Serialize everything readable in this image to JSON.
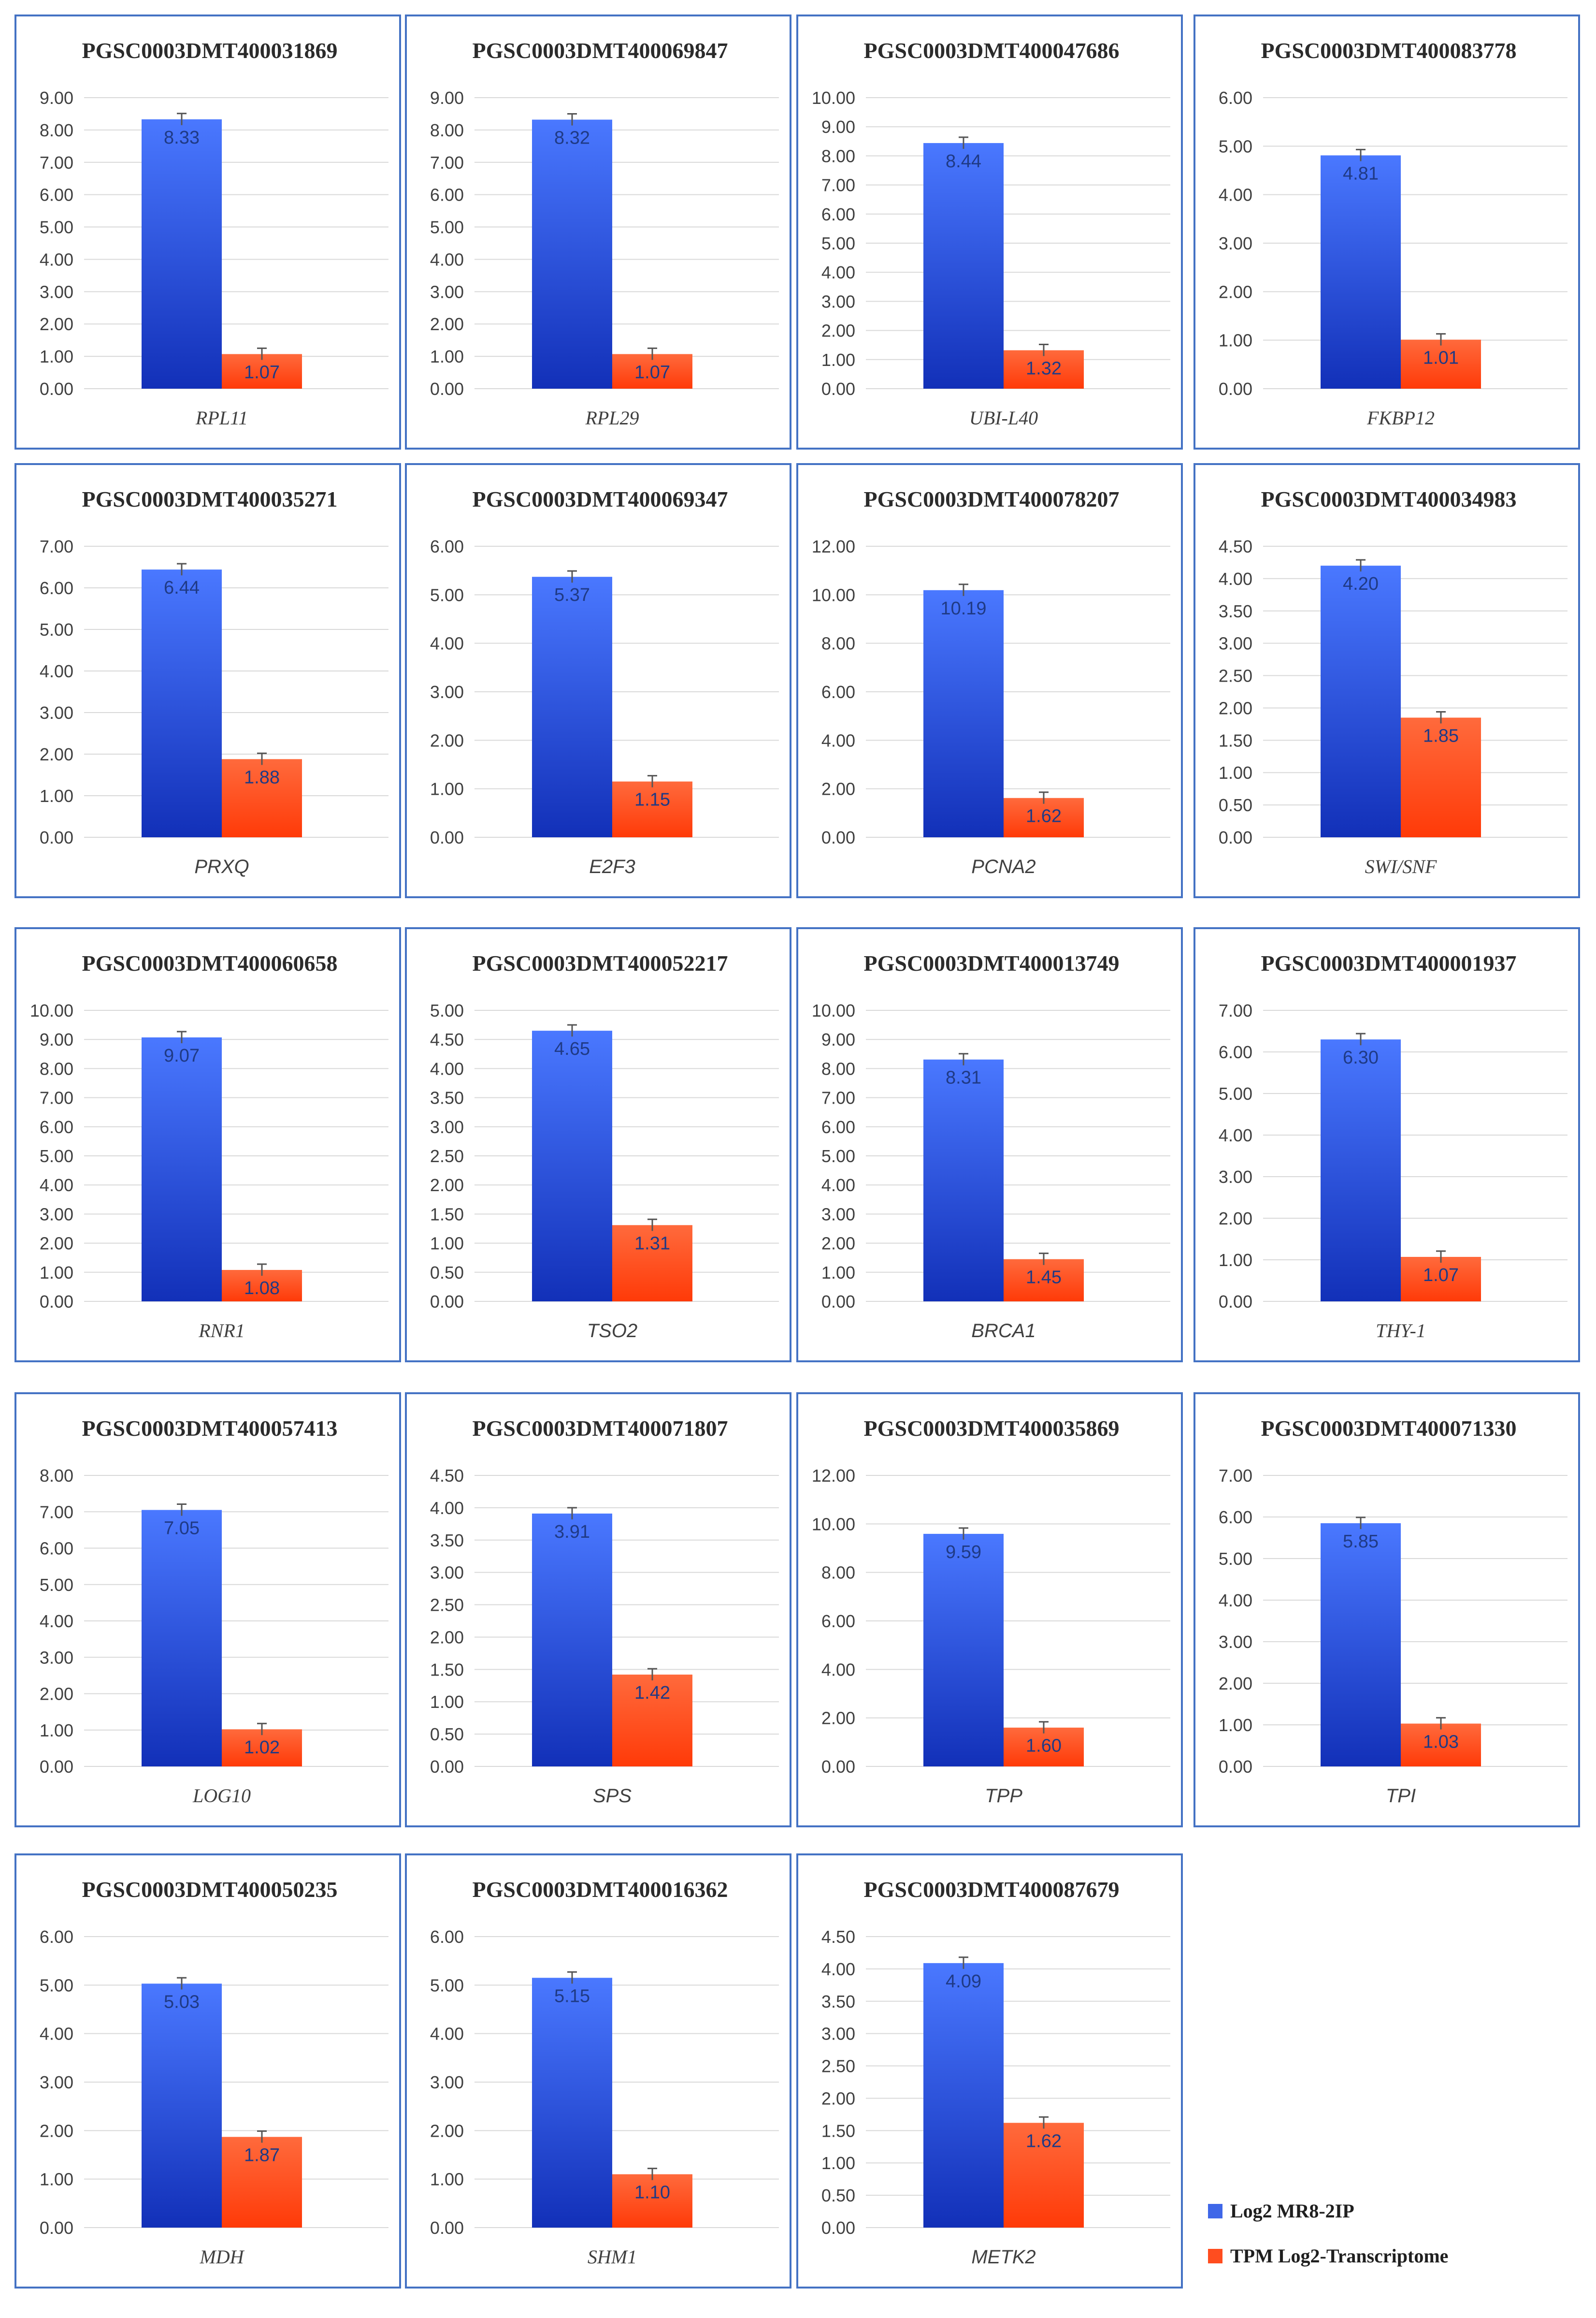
{
  "colors": {
    "ip_bar": "#3f67e8",
    "transcriptome_bar": "#ff4d1f",
    "border": "#4472c4"
  },
  "legend": {
    "series_a": "Log2 MR8-2IP",
    "series_b": "TPM Log2-Transcriptome"
  },
  "chart_data": [
    {
      "type": "bar",
      "title": "PGSC0003DMT400031869",
      "xlabel": "RPL11",
      "ylim": [
        0,
        9
      ],
      "ticks": [
        "0.00",
        "1.00",
        "2.00",
        "3.00",
        "4.00",
        "5.00",
        "6.00",
        "7.00",
        "8.00",
        "9.00"
      ],
      "series": [
        {
          "name": "Log2 MR8-2IP",
          "value": 8.33,
          "label": "8.33"
        },
        {
          "name": "TPM Log2-Transcriptome",
          "value": 1.07,
          "label": "1.07"
        }
      ]
    },
    {
      "type": "bar",
      "title": "PGSC0003DMT400069847",
      "xlabel": "RPL29",
      "ylim": [
        0,
        9
      ],
      "ticks": [
        "0.00",
        "1.00",
        "2.00",
        "3.00",
        "4.00",
        "5.00",
        "6.00",
        "7.00",
        "8.00",
        "9.00"
      ],
      "series": [
        {
          "name": "Log2 MR8-2IP",
          "value": 8.32,
          "label": "8.32"
        },
        {
          "name": "TPM Log2-Transcriptome",
          "value": 1.07,
          "label": "1.07"
        }
      ]
    },
    {
      "type": "bar",
      "title": "PGSC0003DMT400047686",
      "xlabel": "UBI-L40",
      "ylim": [
        0,
        10
      ],
      "ticks": [
        "0.00",
        "1.00",
        "2.00",
        "3.00",
        "4.00",
        "5.00",
        "6.00",
        "7.00",
        "8.00",
        "9.00",
        "10.00"
      ],
      "series": [
        {
          "name": "Log2 MR8-2IP",
          "value": 8.44,
          "label": "8.44"
        },
        {
          "name": "TPM Log2-Transcriptome",
          "value": 1.32,
          "label": "1.32"
        }
      ]
    },
    {
      "type": "bar",
      "title": "PGSC0003DMT400083778",
      "xlabel": "FKBP12",
      "ylim": [
        0,
        6
      ],
      "ticks": [
        "0.00",
        "1.00",
        "2.00",
        "3.00",
        "4.00",
        "5.00",
        "6.00"
      ],
      "series": [
        {
          "name": "Log2 MR8-2IP",
          "value": 4.81,
          "label": "4.81"
        },
        {
          "name": "TPM Log2-Transcriptome",
          "value": 1.01,
          "label": "1.01"
        }
      ]
    },
    {
      "type": "bar",
      "title": "PGSC0003DMT400035271",
      "xlabel": "PRXQ",
      "ylim": [
        0,
        7
      ],
      "ticks": [
        "0.00",
        "1.00",
        "2.00",
        "3.00",
        "4.00",
        "5.00",
        "6.00",
        "7.00"
      ],
      "series": [
        {
          "name": "Log2 MR8-2IP",
          "value": 6.44,
          "label": "6.44"
        },
        {
          "name": "TPM Log2-Transcriptome",
          "value": 1.88,
          "label": "1.88"
        }
      ]
    },
    {
      "type": "bar",
      "title": "PGSC0003DMT400069347",
      "xlabel": "E2F3",
      "ylim": [
        0,
        6
      ],
      "ticks": [
        "0.00",
        "1.00",
        "2.00",
        "3.00",
        "4.00",
        "5.00",
        "6.00"
      ],
      "series": [
        {
          "name": "Log2 MR8-2IP",
          "value": 5.37,
          "label": "5.37"
        },
        {
          "name": "TPM Log2-Transcriptome",
          "value": 1.15,
          "label": "1.15"
        }
      ]
    },
    {
      "type": "bar",
      "title": "PGSC0003DMT400078207",
      "xlabel": "PCNA2",
      "ylim": [
        0,
        12
      ],
      "ticks": [
        "0.00",
        "2.00",
        "4.00",
        "6.00",
        "8.00",
        "10.00",
        "12.00"
      ],
      "series": [
        {
          "name": "Log2 MR8-2IP",
          "value": 10.19,
          "label": "10.19"
        },
        {
          "name": "TPM Log2-Transcriptome",
          "value": 1.62,
          "label": "1.62"
        }
      ]
    },
    {
      "type": "bar",
      "title": "PGSC0003DMT400034983",
      "xlabel": "SWI/SNF",
      "ylim": [
        0,
        4.5
      ],
      "ticks": [
        "0.00",
        "0.50",
        "1.00",
        "1.50",
        "2.00",
        "2.50",
        "3.00",
        "3.50",
        "4.00",
        "4.50"
      ],
      "series": [
        {
          "name": "Log2 MR8-2IP",
          "value": 4.2,
          "label": "4.20"
        },
        {
          "name": "TPM Log2-Transcriptome",
          "value": 1.85,
          "label": "1.85"
        }
      ]
    },
    {
      "type": "bar",
      "title": "PGSC0003DMT400060658",
      "xlabel": "RNR1",
      "ylim": [
        0,
        10
      ],
      "ticks": [
        "0.00",
        "1.00",
        "2.00",
        "3.00",
        "4.00",
        "5.00",
        "6.00",
        "7.00",
        "8.00",
        "9.00",
        "10.00"
      ],
      "series": [
        {
          "name": "Log2 MR8-2IP",
          "value": 9.07,
          "label": "9.07"
        },
        {
          "name": "TPM Log2-Transcriptome",
          "value": 1.08,
          "label": "1.08"
        }
      ]
    },
    {
      "type": "bar",
      "title": "PGSC0003DMT400052217",
      "xlabel": "TSO2",
      "ylim": [
        0,
        5
      ],
      "ticks": [
        "0.00",
        "0.50",
        "1.00",
        "1.50",
        "2.00",
        "2.50",
        "3.00",
        "3.50",
        "4.00",
        "4.50",
        "5.00"
      ],
      "series": [
        {
          "name": "Log2 MR8-2IP",
          "value": 4.65,
          "label": "4.65"
        },
        {
          "name": "TPM Log2-Transcriptome",
          "value": 1.31,
          "label": "1.31"
        }
      ]
    },
    {
      "type": "bar",
      "title": "PGSC0003DMT400013749",
      "xlabel": "BRCA1",
      "ylim": [
        0,
        10
      ],
      "ticks": [
        "0.00",
        "1.00",
        "2.00",
        "3.00",
        "4.00",
        "5.00",
        "6.00",
        "7.00",
        "8.00",
        "9.00",
        "10.00"
      ],
      "series": [
        {
          "name": "Log2 MR8-2IP",
          "value": 8.31,
          "label": "8.31"
        },
        {
          "name": "TPM Log2-Transcriptome",
          "value": 1.45,
          "label": "1.45"
        }
      ]
    },
    {
      "type": "bar",
      "title": "PGSC0003DMT400001937",
      "xlabel": "THY-1",
      "ylim": [
        0,
        7
      ],
      "ticks": [
        "0.00",
        "1.00",
        "2.00",
        "3.00",
        "4.00",
        "5.00",
        "6.00",
        "7.00"
      ],
      "series": [
        {
          "name": "Log2 MR8-2IP",
          "value": 6.3,
          "label": "6.30"
        },
        {
          "name": "TPM Log2-Transcriptome",
          "value": 1.07,
          "label": "1.07"
        }
      ]
    },
    {
      "type": "bar",
      "title": "PGSC0003DMT400057413",
      "xlabel": "LOG10",
      "ylim": [
        0,
        8
      ],
      "ticks": [
        "0.00",
        "1.00",
        "2.00",
        "3.00",
        "4.00",
        "5.00",
        "6.00",
        "7.00",
        "8.00"
      ],
      "series": [
        {
          "name": "Log2 MR8-2IP",
          "value": 7.05,
          "label": "7.05"
        },
        {
          "name": "TPM Log2-Transcriptome",
          "value": 1.02,
          "label": "1.02"
        }
      ]
    },
    {
      "type": "bar",
      "title": "PGSC0003DMT400071807",
      "xlabel": "SPS",
      "ylim": [
        0,
        4.5
      ],
      "ticks": [
        "0.00",
        "0.50",
        "1.00",
        "1.50",
        "2.00",
        "2.50",
        "3.00",
        "3.50",
        "4.00",
        "4.50"
      ],
      "series": [
        {
          "name": "Log2 MR8-2IP",
          "value": 3.91,
          "label": "3.91"
        },
        {
          "name": "TPM Log2-Transcriptome",
          "value": 1.42,
          "label": "1.42"
        }
      ]
    },
    {
      "type": "bar",
      "title": "PGSC0003DMT400035869",
      "xlabel": "TPP",
      "ylim": [
        0,
        12
      ],
      "ticks": [
        "0.00",
        "2.00",
        "4.00",
        "6.00",
        "8.00",
        "10.00",
        "12.00"
      ],
      "series": [
        {
          "name": "Log2 MR8-2IP",
          "value": 9.59,
          "label": "9.59"
        },
        {
          "name": "TPM Log2-Transcriptome",
          "value": 1.6,
          "label": "1.60"
        }
      ]
    },
    {
      "type": "bar",
      "title": "PGSC0003DMT400071330",
      "xlabel": "TPI",
      "ylim": [
        0,
        7
      ],
      "ticks": [
        "0.00",
        "1.00",
        "2.00",
        "3.00",
        "4.00",
        "5.00",
        "6.00",
        "7.00"
      ],
      "series": [
        {
          "name": "Log2 MR8-2IP",
          "value": 5.85,
          "label": "5.85"
        },
        {
          "name": "TPM Log2-Transcriptome",
          "value": 1.03,
          "label": "1.03"
        }
      ]
    },
    {
      "type": "bar",
      "title": "PGSC0003DMT400050235",
      "xlabel": "MDH",
      "ylim": [
        0,
        6
      ],
      "ticks": [
        "0.00",
        "1.00",
        "2.00",
        "3.00",
        "4.00",
        "5.00",
        "6.00"
      ],
      "series": [
        {
          "name": "Log2 MR8-2IP",
          "value": 5.03,
          "label": "5.03"
        },
        {
          "name": "TPM Log2-Transcriptome",
          "value": 1.87,
          "label": "1.87"
        }
      ]
    },
    {
      "type": "bar",
      "title": "PGSC0003DMT400016362",
      "xlabel": "SHM1",
      "ylim": [
        0,
        6
      ],
      "ticks": [
        "0.00",
        "1.00",
        "2.00",
        "3.00",
        "4.00",
        "5.00",
        "6.00"
      ],
      "series": [
        {
          "name": "Log2 MR8-2IP",
          "value": 5.15,
          "label": "5.15"
        },
        {
          "name": "TPM Log2-Transcriptome",
          "value": 1.1,
          "label": "1.10"
        }
      ]
    },
    {
      "type": "bar",
      "title": "PGSC0003DMT400087679",
      "xlabel": "METK2",
      "ylim": [
        0,
        4.5
      ],
      "ticks": [
        "0.00",
        "0.50",
        "1.00",
        "1.50",
        "2.00",
        "2.50",
        "3.00",
        "3.50",
        "4.00",
        "4.50"
      ],
      "series": [
        {
          "name": "Log2 MR8-2IP",
          "value": 4.09,
          "label": "4.09"
        },
        {
          "name": "TPM Log2-Transcriptome",
          "value": 1.62,
          "label": "1.62"
        }
      ]
    }
  ]
}
